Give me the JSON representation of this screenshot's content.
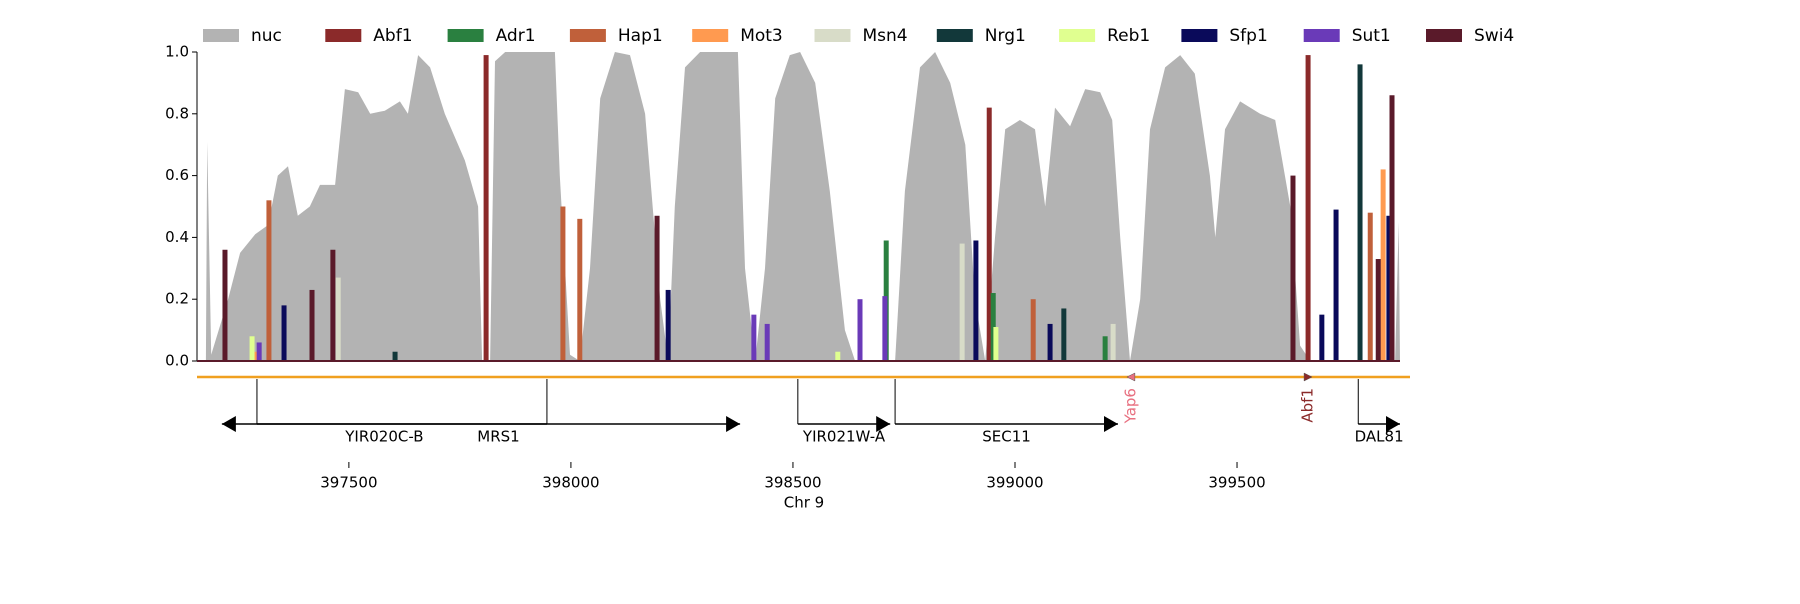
{
  "chart_data": {
    "type": "area",
    "x_label": "Chr 9",
    "xlim": [
      397158,
      399867
    ],
    "ylim": [
      0,
      1
    ],
    "xticks": [
      397500,
      398000,
      398500,
      399000,
      399500
    ],
    "yticks": [
      {
        "value": 0,
        "label": "0.0"
      },
      {
        "value": 0.2,
        "label": "0.2"
      },
      {
        "value": 0.4,
        "label": "0.4"
      },
      {
        "value": 0.6,
        "label": "0.6"
      },
      {
        "value": 0.8,
        "label": "0.8"
      },
      {
        "value": 1,
        "label": "1.0"
      }
    ],
    "nucleosome": {
      "name": "nuc",
      "color": "#b3b3b3",
      "x": [
        397178,
        397181,
        397190,
        397228,
        397255,
        397289,
        397318,
        397340,
        397363,
        397385,
        397412,
        397435,
        397469,
        397491,
        397521,
        397548,
        397581,
        397615,
        397633,
        397656,
        397683,
        397716,
        397761,
        397791,
        397800,
        397818,
        397829,
        397852,
        397964,
        397975,
        397998,
        398020,
        398043,
        398066,
        398099,
        398133,
        398167,
        398201,
        398219,
        398234,
        398257,
        398291,
        398376,
        398392,
        398415,
        398437,
        398460,
        398493,
        398516,
        398550,
        398583,
        398617,
        398640,
        398730,
        398752,
        398786,
        398820,
        398854,
        398888,
        398910,
        398933,
        398955,
        398978,
        399011,
        399045,
        399068,
        399090,
        399124,
        399158,
        399192,
        399219,
        399237,
        399259,
        399282,
        399304,
        399338,
        399372,
        399405,
        399439,
        399451,
        399473,
        399507,
        399552,
        399586,
        399620,
        399642,
        399665,
        399856,
        399864,
        399867
      ],
      "values": [
        0,
        0.71,
        0.02,
        0.2,
        0.35,
        0.41,
        0.44,
        0.6,
        0.63,
        0.47,
        0.5,
        0.57,
        0.57,
        0.88,
        0.87,
        0.8,
        0.81,
        0.84,
        0.8,
        0.99,
        0.95,
        0.8,
        0.65,
        0.5,
        0,
        0,
        0.97,
        1,
        1,
        0.6,
        0.02,
        0,
        0.3,
        0.85,
        1,
        0.99,
        0.8,
        0.2,
        0,
        0.5,
        0.95,
        1,
        1,
        0.3,
        0,
        0.3,
        0.85,
        0.99,
        1,
        0.9,
        0.55,
        0.1,
        0,
        0,
        0.55,
        0.95,
        1,
        0.9,
        0.7,
        0.2,
        0,
        0.4,
        0.75,
        0.78,
        0.75,
        0.5,
        0.82,
        0.76,
        0.88,
        0.87,
        0.78,
        0.4,
        0,
        0.2,
        0.75,
        0.95,
        0.99,
        0.93,
        0.6,
        0.4,
        0.75,
        0.84,
        0.8,
        0.78,
        0.5,
        0.05,
        0,
        0,
        0.45,
        0
      ]
    },
    "series": [
      {
        "name": "Abf1",
        "color": "#8b2a2a",
        "x": [
          397809,
          398942,
          399660
        ],
        "values": [
          0.99,
          0.82,
          0.99
        ]
      },
      {
        "name": "Adr1",
        "color": "#2a8040",
        "x": [
          398710,
          398951,
          399203
        ],
        "values": [
          0.39,
          0.22,
          0.08
        ]
      },
      {
        "name": "Hap1",
        "color": "#c0603a",
        "x": [
          397320,
          397982,
          398020,
          399041,
          399800
        ],
        "values": [
          0.52,
          0.5,
          0.46,
          0.2,
          0.48
        ]
      },
      {
        "name": "Mot3",
        "color": "#ff9a50",
        "x": [
          397288,
          399829
        ],
        "values": [
          0.03,
          0.62
        ]
      },
      {
        "name": "Msn4",
        "color": "#d8dcc8",
        "x": [
          397476,
          398881,
          399221
        ],
        "values": [
          0.27,
          0.38,
          0.12
        ]
      },
      {
        "name": "Nrg1",
        "color": "#12383a",
        "x": [
          397604,
          399110,
          399777
        ],
        "values": [
          0.03,
          0.17,
          0.96
        ]
      },
      {
        "name": "Reb1",
        "color": "#e0ff90",
        "x": [
          397282,
          398601,
          398957
        ],
        "values": [
          0.08,
          0.03,
          0.11
        ]
      },
      {
        "name": "Sfp1",
        "color": "#0a0a5a",
        "x": [
          397354,
          398219,
          398912,
          399079,
          399691,
          399723,
          399842
        ],
        "values": [
          0.18,
          0.23,
          0.39,
          0.12,
          0.15,
          0.49,
          0.47
        ]
      },
      {
        "name": "Sut1",
        "color": "#6a3ab8",
        "x": [
          397298,
          398412,
          398442,
          398651,
          398707
        ],
        "values": [
          0.06,
          0.15,
          0.12,
          0.2,
          0.21
        ]
      },
      {
        "name": "Swi4",
        "color": "#5a1a2a",
        "x": [
          397221,
          397417,
          397464,
          398194,
          399626,
          399818,
          399849
        ],
        "values": [
          0.36,
          0.23,
          0.36,
          0.47,
          0.6,
          0.33,
          0.86
        ]
      }
    ],
    "genes": [
      {
        "name": "YIR020C-B",
        "start": 397214,
        "end": 397946,
        "strand": "-"
      },
      {
        "name": "MRS1",
        "start": 397293,
        "end": 398381,
        "strand": "+"
      },
      {
        "name": "YIR021W-A",
        "start": 398511,
        "end": 398719,
        "strand": "+"
      },
      {
        "name": "SEC11",
        "start": 398730,
        "end": 399232,
        "strand": "+"
      },
      {
        "name": "DAL81",
        "start": 399773,
        "end": 399867,
        "strand": "+"
      }
    ],
    "motifs": [
      {
        "name": "Yap6",
        "position": 399261,
        "strand": "-",
        "color": "#e87080"
      },
      {
        "name": "Abf1",
        "position": 399660,
        "strand": "+",
        "color": "#8b2a2a"
      }
    ]
  }
}
